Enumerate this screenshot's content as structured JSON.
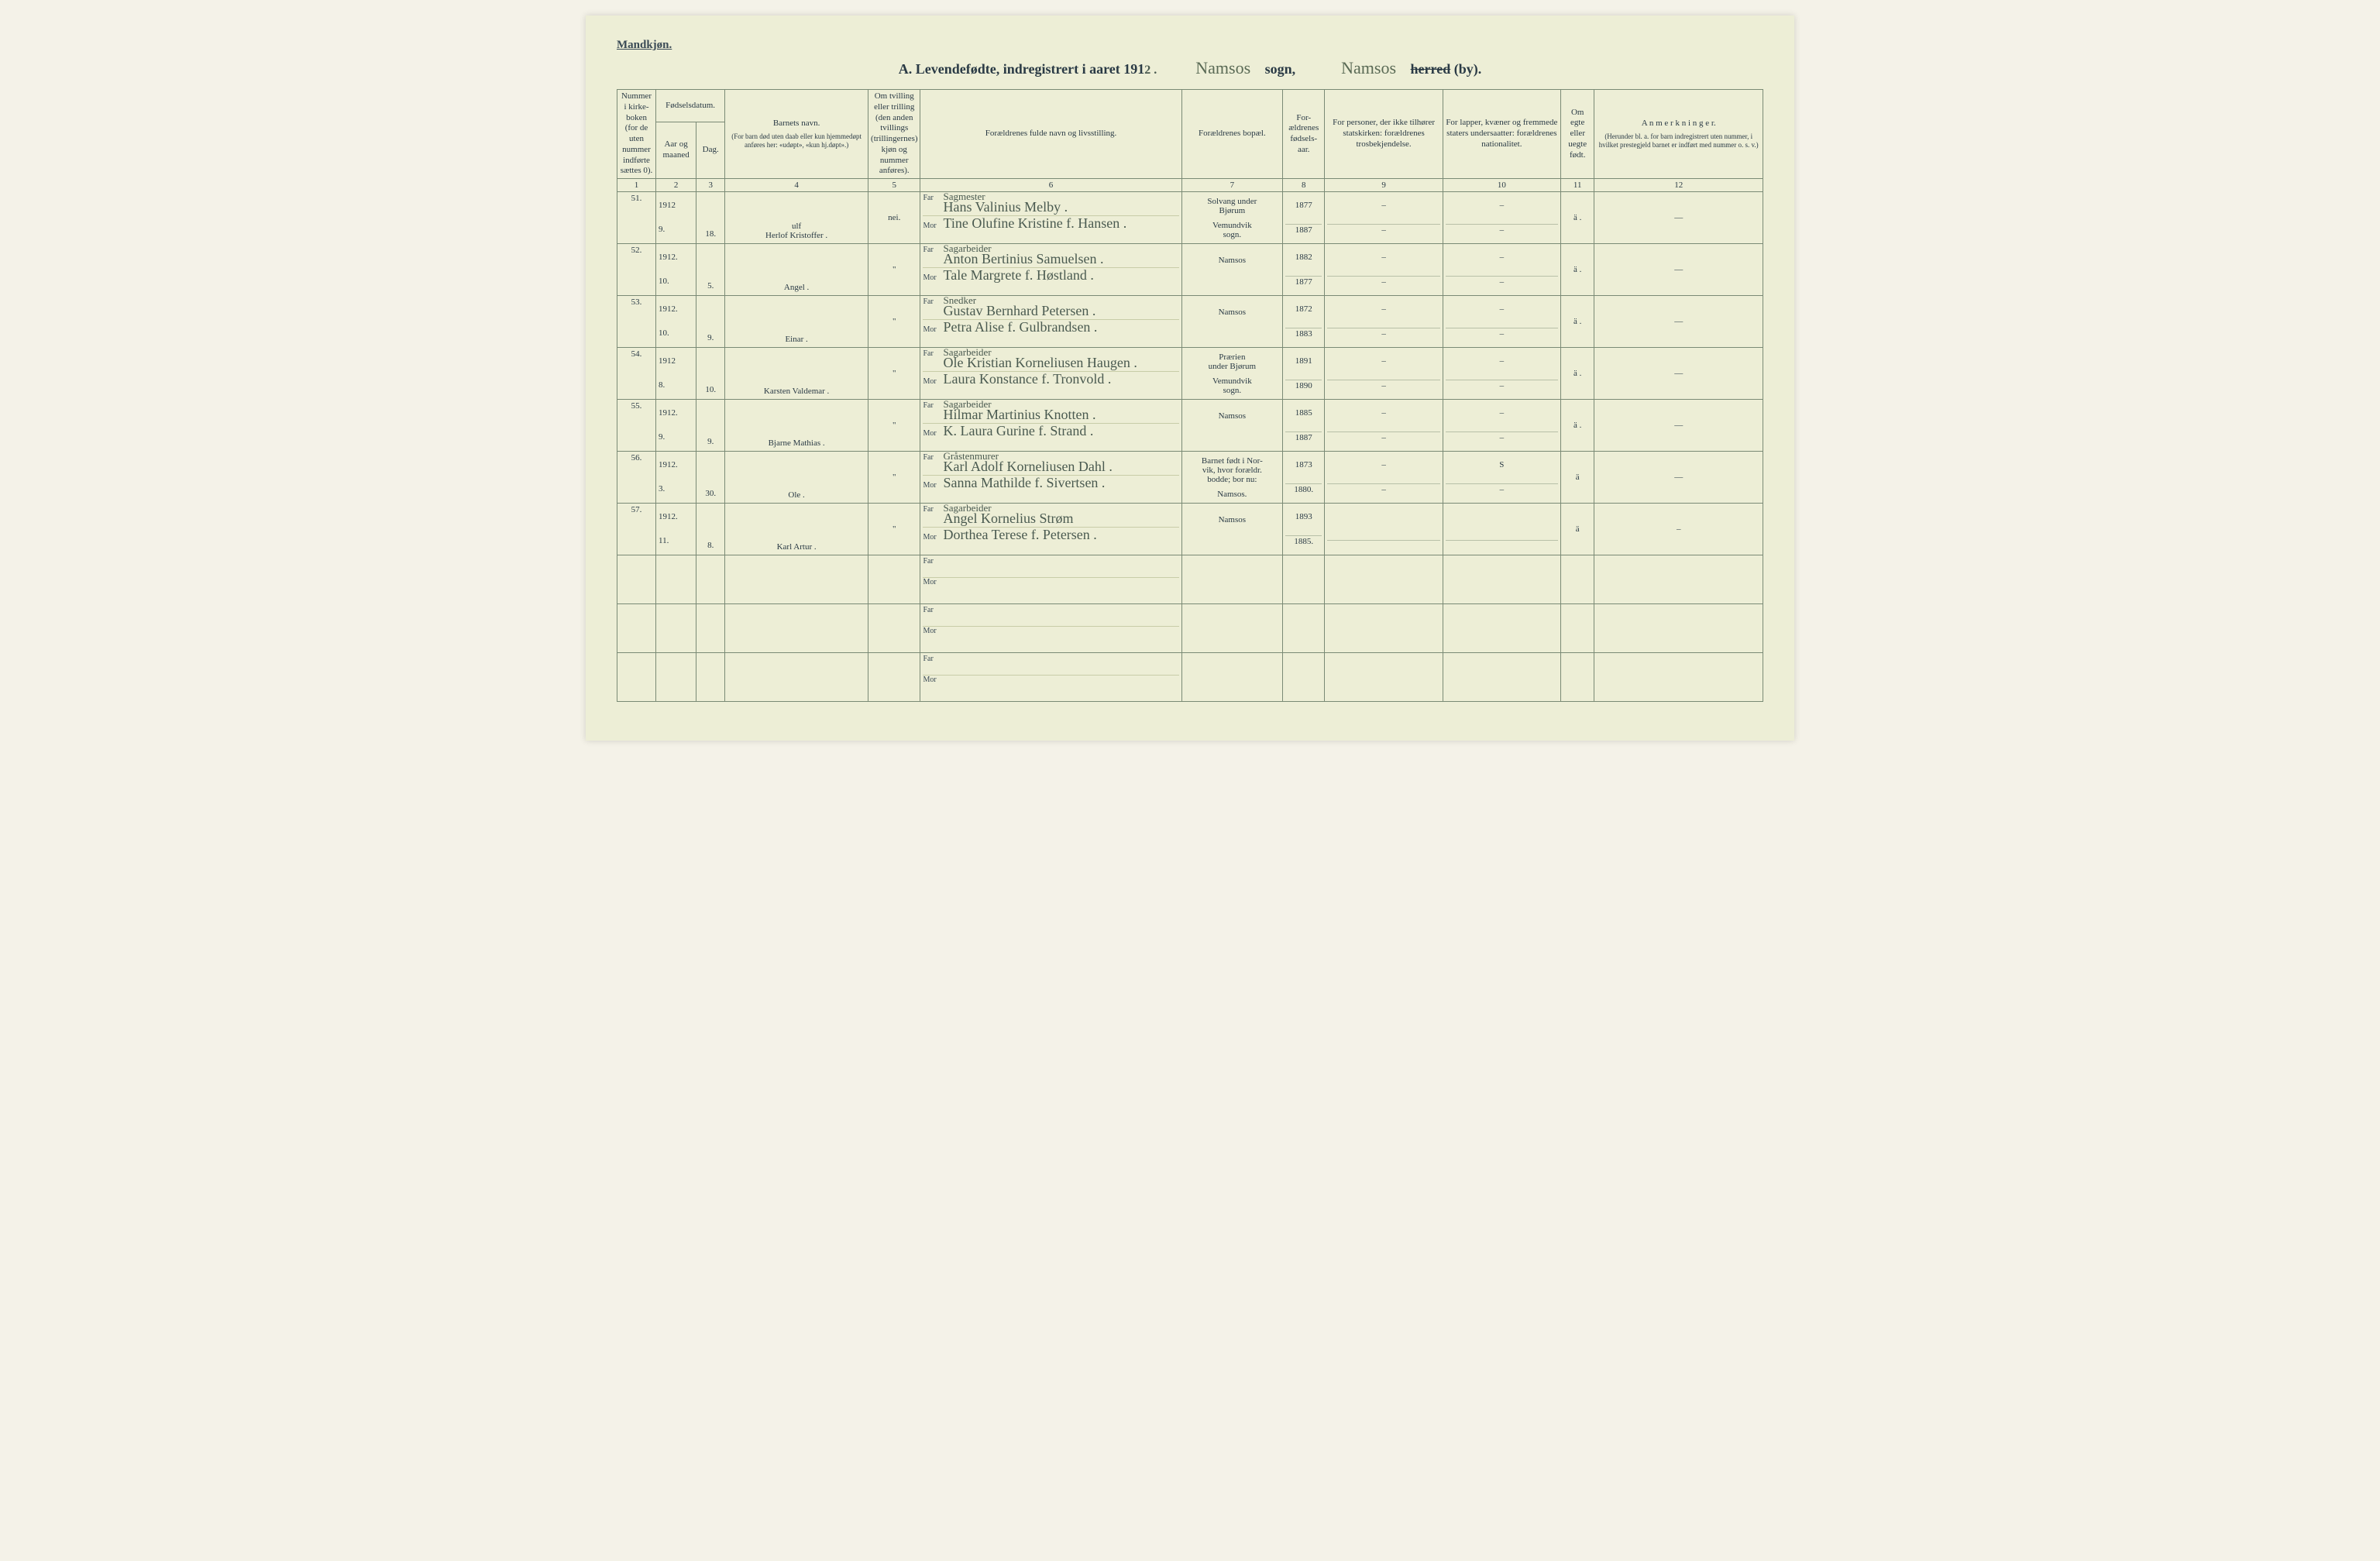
{
  "page": {
    "corner_label": "Mandkjøn.",
    "title_prefix": "A.  Levendefødte, indregistrert i aaret 191",
    "title_year_suffix": "2 .",
    "sogn_cursive": "Namsos",
    "sogn_label": "sogn,",
    "herred_cursive": "Namsos",
    "herred_strike": "herred",
    "herred_suffix": "(by)."
  },
  "headers": {
    "c1": "Nummer i kirke- boken (for de uten nummer indførte sættes 0).",
    "c2_top": "Fødselsdatum.",
    "c2a": "Aar og maaned",
    "c2b": "Dag.",
    "c4": "Barnets navn.",
    "c4_sub": "(For barn død uten daab eller kun hjemmedøpt anføres her: «udøpt», «kun hj.døpt».)",
    "c5": "Om tvilling eller trilling (den anden tvillings (trillingernes) kjøn og nummer anføres).",
    "c6": "Forældrenes fulde navn og livsstilling.",
    "c7": "Forældrenes bopæl.",
    "c8": "For- ældrenes fødsels- aar.",
    "c9": "For personer, der ikke tilhører statskirken: forældrenes trosbekjendelse.",
    "c10": "For lapper, kvæner og fremmede staters undersaatter: forældrenes nationalitet.",
    "c11": "Om egte eller uegte født.",
    "c12": "A n m e r k n i n g e r.",
    "c12_sub": "(Herunder bl. a. for barn indregistrert uten nummer, i hvilket prestegjeld barnet er indført med nummer o. s. v.)",
    "far": "Far",
    "mor": "Mor"
  },
  "colnums": [
    "1",
    "2",
    "3",
    "4",
    "5",
    "6",
    "7",
    "8",
    "9",
    "10",
    "11",
    "12"
  ],
  "rows": [
    {
      "num": "51.",
      "year_month": "1912\n9.",
      "day": "18.",
      "child": "ulf\nHerlof Kristoffer .",
      "twin": "nei.",
      "far_occ": "Sagmester",
      "far": "Hans Valinius Melby .",
      "mor": "Tine Olufine Kristine f. Hansen .",
      "bopel": "Solvang under\nBjørum",
      "bopel2": "Vemundvik\nsogn.",
      "faar": "1877",
      "maar": "1887",
      "c9f": "–",
      "c9m": "–",
      "c10f": "–",
      "c10m": "–",
      "egte": "ä .",
      "anm": "—"
    },
    {
      "num": "52.",
      "year_month": "1912.\n10.",
      "day": "5.",
      "child": "Angel .",
      "twin": "\"",
      "far_occ": "Sagarbeider",
      "far": "Anton Bertinius Samuelsen .",
      "mor": "Tale Margrete f. Høstland .",
      "bopel": "Namsos",
      "bopel2": "",
      "faar": "1882",
      "maar": "1877",
      "c9f": "–",
      "c9m": "–",
      "c10f": "–",
      "c10m": "–",
      "egte": "ä .",
      "anm": "—"
    },
    {
      "num": "53.",
      "year_month": "1912.\n10.",
      "day": "9.",
      "child": "Einar .",
      "twin": "\"",
      "far_occ": "Snedker",
      "far": "Gustav Bernhard Petersen .",
      "mor": "Petra Alise f. Gulbrandsen .",
      "bopel": "Namsos",
      "bopel2": "",
      "faar": "1872",
      "maar": "1883",
      "c9f": "–",
      "c9m": "–",
      "c10f": "–",
      "c10m": "–",
      "egte": "ä .",
      "anm": "—"
    },
    {
      "num": "54.",
      "year_month": "1912\n8.",
      "day": "10.",
      "child": "Karsten Valdemar .",
      "twin": "\"",
      "far_occ": "Sagarbeider",
      "far": "Ole Kristian Korneliusen Haugen .",
      "mor": "Laura Konstance f. Tronvold .",
      "bopel": "Prærien\nunder Bjørum",
      "bopel2": "Vemundvik\nsogn.",
      "faar": "1891",
      "maar": "1890",
      "c9f": "–",
      "c9m": "–",
      "c10f": "–",
      "c10m": "–",
      "egte": "ä .",
      "anm": "—"
    },
    {
      "num": "55.",
      "year_month": "1912.\n9.",
      "day": "9.",
      "child": "Bjarne Mathias .",
      "twin": "\"",
      "far_occ": "Sagarbeider",
      "far": "Hilmar Martinius Knotten .",
      "mor": "K. Laura Gurine f. Strand .",
      "bopel": "Namsos",
      "bopel2": "",
      "faar": "1885",
      "maar": "1887",
      "c9f": "–",
      "c9m": "–",
      "c10f": "–",
      "c10m": "–",
      "egte": "ä .",
      "anm": "—"
    },
    {
      "num": "56.",
      "year_month": "1912.\n3.",
      "day": "30.",
      "child": "Ole .",
      "twin": "\"",
      "far_occ": "Gråstenmurer",
      "far": "Karl Adolf Korneliusen Dahl .",
      "mor": "Sanna Mathilde f. Sivertsen .",
      "bopel": "Barnet født i Nor-\nvik, hvor forældr.\nbodde; bor nu:",
      "bopel2": "Namsos.",
      "faar": "1873",
      "maar": "1880.",
      "c9f": "–",
      "c9m": "–",
      "c10f": "S",
      "c10m": "–",
      "egte": "ä",
      "anm": "—"
    },
    {
      "num": "57.",
      "year_month": "1912.\n11.",
      "day": "8.",
      "child": "Karl Artur .",
      "twin": "\"",
      "far_occ": "Sagarbeider",
      "far": "Angel Kornelius Strøm",
      "mor": "Dorthea Terese f. Petersen .",
      "bopel": "Namsos",
      "bopel2": "",
      "faar": "1893",
      "maar": "1885.",
      "c9f": "",
      "c9m": "",
      "c10f": "",
      "c10m": "",
      "egte": "ä",
      "anm": "–"
    }
  ],
  "empty_rows": 3,
  "col_widths": {
    "c1": "46px",
    "c2a": "48px",
    "c2b": "34px",
    "c4": "170px",
    "c5": "62px",
    "c6": "310px",
    "c7": "120px",
    "c8": "50px",
    "c9": "140px",
    "c10": "140px",
    "c11": "40px",
    "c12": "200px"
  }
}
